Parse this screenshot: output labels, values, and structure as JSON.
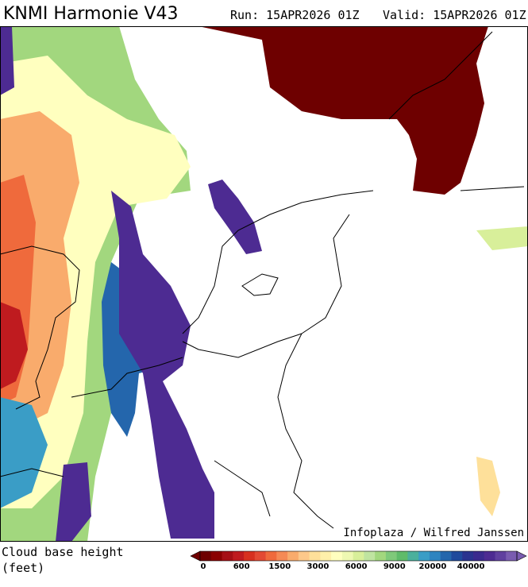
{
  "header": {
    "title": "KNMI Harmonie V43",
    "run": "Run: 15APR2026 01Z",
    "valid": "Valid: 15APR2026 01Z"
  },
  "map": {
    "credit": "Infoplaza / Wilfred Janssen"
  },
  "legend": {
    "title_line1": "Cloud base height",
    "title_line2": "(feet)",
    "labels": [
      "0",
      "600",
      "1500",
      "3000",
      "6000",
      "9000",
      "20000",
      "40000"
    ],
    "colors": [
      "#6e0000",
      "#8a0000",
      "#a50f15",
      "#bf1b1f",
      "#d7301f",
      "#e34a33",
      "#ef6a3c",
      "#f58a55",
      "#f9ab6c",
      "#fdc88a",
      "#fee09a",
      "#fff0aa",
      "#ffffbf",
      "#eef8b2",
      "#d8ef9a",
      "#bfe4a0",
      "#a2d77e",
      "#7fc97a",
      "#5fbb6a",
      "#4bb09c",
      "#3a9dc6",
      "#2e84c0",
      "#2466ac",
      "#1f4a9c",
      "#2a338f",
      "#3a2a8e",
      "#4d2b92",
      "#60409f",
      "#7a5cb0"
    ]
  }
}
